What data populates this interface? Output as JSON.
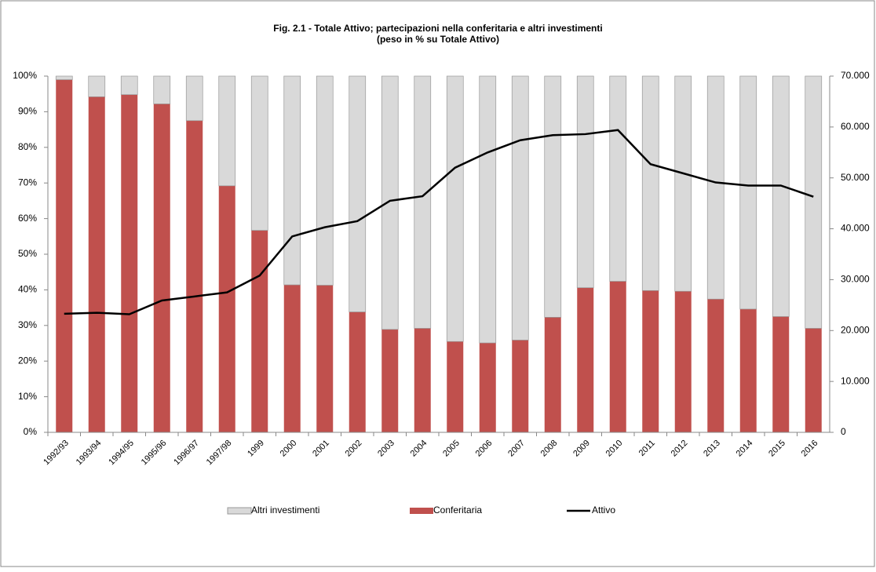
{
  "chart_data": {
    "type": "stacked-bar-line",
    "title": "Fig. 2.1 - Totale Attivo; partecipazioni nella conferitaria e altri investimenti",
    "subtitle": "(peso in % su Totale Attivo)",
    "categories": [
      "1992/93",
      "1993/94",
      "1994/95",
      "1995/96",
      "1996/97",
      "1997/98",
      "1999",
      "2000",
      "2001",
      "2002",
      "2003",
      "2004",
      "2005",
      "2006",
      "2007",
      "2008",
      "2009",
      "2010",
      "2011",
      "2012",
      "2013",
      "2014",
      "2015",
      "2016"
    ],
    "series": [
      {
        "name": "Altri investimenti",
        "color": "#d9d9d9",
        "values": [
          1,
          5.8,
          5.2,
          7.8,
          12.5,
          30.8,
          43.3,
          58.6,
          58.7,
          66.2,
          71.1,
          70.8,
          74.5,
          74.9,
          74.1,
          67.7,
          59.4,
          57.6,
          60.2,
          60.4,
          62.6,
          65.4,
          67.5,
          70.8
        ]
      },
      {
        "name": "Conferitaria",
        "color": "#c0504d",
        "values": [
          99,
          94.2,
          94.8,
          92.2,
          87.5,
          69.2,
          56.7,
          41.4,
          41.3,
          33.8,
          28.9,
          29.2,
          25.5,
          25.1,
          25.9,
          32.3,
          40.6,
          42.4,
          39.8,
          39.6,
          37.4,
          34.6,
          32.5,
          29.2
        ]
      },
      {
        "name": "Attivo",
        "color": "#000000",
        "axis": "y2",
        "values": [
          23300,
          23500,
          23200,
          25900,
          26700,
          27500,
          30800,
          38500,
          40300,
          41500,
          45500,
          46400,
          52000,
          55000,
          57400,
          58400,
          58600,
          59400,
          52700,
          50900,
          49100,
          48500,
          48500,
          46300
        ]
      }
    ],
    "ylim": [
      0,
      100
    ],
    "yticks": [
      {
        "value": 0,
        "label": "0%"
      },
      {
        "value": 10,
        "label": "10%"
      },
      {
        "value": 20,
        "label": "20%"
      },
      {
        "value": 30,
        "label": "30%"
      },
      {
        "value": 40,
        "label": "40%"
      },
      {
        "value": 50,
        "label": "50%"
      },
      {
        "value": 60,
        "label": "60%"
      },
      {
        "value": 70,
        "label": "70%"
      },
      {
        "value": 80,
        "label": "80%"
      },
      {
        "value": 90,
        "label": "90%"
      },
      {
        "value": 100,
        "label": "100%"
      }
    ],
    "y2lim": [
      0,
      70000
    ],
    "y2ticks": [
      0,
      {
        "value": 10000,
        "label": "10.000"
      },
      {
        "value": 20000,
        "label": "20.000"
      },
      {
        "value": 30000,
        "label": "30.000"
      },
      {
        "value": 40000,
        "label": "40.000"
      },
      {
        "value": 50000,
        "label": "50.000"
      },
      {
        "value": 60000,
        "label": "60.000"
      },
      {
        "value": 70000,
        "label": "70.000"
      }
    ],
    "legend": "bottom"
  }
}
